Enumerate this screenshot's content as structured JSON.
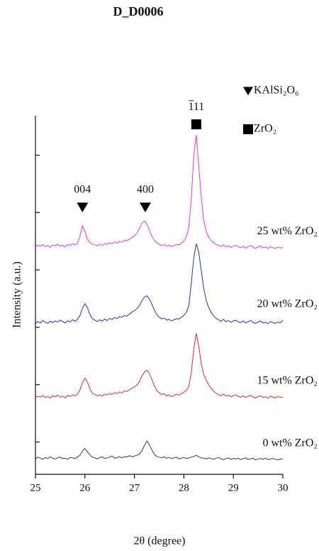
{
  "chart_data": {
    "type": "line",
    "title": "D_D0006",
    "xlabel": "2θ (degree)",
    "ylabel": "Intensity (a.u.)",
    "xlim": [
      25,
      30
    ],
    "xticks": [
      25,
      26,
      27,
      28,
      29,
      30
    ],
    "ylim": [
      0,
      100
    ],
    "yticks": [
      9,
      25,
      41,
      57,
      73,
      89
    ],
    "ytick_labels": false,
    "x": [
      25.0,
      25.05,
      25.1,
      25.15,
      25.2,
      25.25,
      25.3,
      25.35,
      25.4,
      25.45,
      25.5,
      25.55,
      25.6,
      25.65,
      25.7,
      25.75,
      25.8,
      25.85,
      25.9,
      25.95,
      26.0,
      26.05,
      26.1,
      26.15,
      26.2,
      26.25,
      26.3,
      26.35,
      26.4,
      26.45,
      26.5,
      26.55,
      26.6,
      26.65,
      26.7,
      26.75,
      26.8,
      26.85,
      26.9,
      26.95,
      27.0,
      27.05,
      27.1,
      27.15,
      27.2,
      27.25,
      27.3,
      27.35,
      27.4,
      27.45,
      27.5,
      27.55,
      27.6,
      27.65,
      27.7,
      27.75,
      27.8,
      27.85,
      27.9,
      27.95,
      28.0,
      28.05,
      28.1,
      28.15,
      28.2,
      28.25,
      28.3,
      28.35,
      28.4,
      28.45,
      28.5,
      28.55,
      28.6,
      28.65,
      28.7,
      28.75,
      28.8,
      28.85,
      28.9,
      28.95,
      29.0,
      29.05,
      29.1,
      29.15,
      29.2,
      29.25,
      29.3,
      29.35,
      29.4,
      29.45,
      29.5,
      29.55,
      29.6,
      29.65,
      29.7,
      29.75,
      29.8,
      29.85,
      29.9,
      29.95,
      30.0
    ],
    "series": [
      {
        "name": "0 wt% ZrO₂",
        "color": "#3a3a3a",
        "values": [
          4.3,
          4.8,
          4.5,
          4.2,
          4.7,
          4.4,
          4.9,
          4.5,
          4.3,
          4.6,
          4.8,
          4.4,
          4.5,
          4.2,
          4.7,
          4.6,
          4.4,
          4.9,
          5.3,
          6.5,
          7.2,
          6.3,
          5.4,
          4.8,
          4.6,
          4.3,
          4.7,
          4.9,
          4.4,
          4.6,
          4.8,
          5.1,
          4.5,
          4.7,
          4.9,
          4.6,
          5.0,
          4.8,
          5.2,
          4.9,
          5.1,
          5.3,
          5.6,
          6.6,
          8.0,
          9.3,
          8.3,
          6.9,
          5.6,
          5.0,
          4.8,
          4.6,
          4.9,
          4.5,
          4.7,
          4.4,
          4.6,
          4.8,
          4.3,
          4.5,
          4.7,
          4.4,
          4.6,
          4.8,
          5.0,
          5.3,
          4.9,
          4.6,
          4.5,
          4.3,
          4.6,
          4.4,
          4.2,
          4.5,
          4.7,
          4.3,
          4.1,
          4.4,
          4.6,
          4.2,
          4.4,
          4.3,
          4.5,
          4.1,
          4.4,
          4.6,
          4.2,
          4.3,
          4.5,
          4.0,
          4.3,
          4.4,
          4.2,
          4.5,
          4.1,
          4.3,
          4.4,
          4.2,
          4.0,
          4.3,
          4.2
        ]
      },
      {
        "name": "15 wt% ZrO₂",
        "color": "#e8262b",
        "values": [
          21.3,
          21.8,
          21.5,
          22.0,
          21.4,
          21.7,
          21.2,
          21.9,
          21.6,
          22.1,
          21.5,
          21.8,
          21.3,
          22.0,
          21.7,
          22.2,
          21.9,
          22.3,
          23.5,
          25.5,
          26.8,
          25.8,
          23.9,
          22.6,
          22.3,
          21.9,
          22.2,
          21.8,
          22.4,
          22.1,
          22.6,
          22.3,
          22.8,
          22.5,
          23.0,
          22.7,
          23.3,
          23.1,
          23.6,
          24.0,
          24.4,
          24.9,
          25.8,
          27.3,
          28.5,
          29.0,
          28.2,
          26.6,
          24.8,
          23.4,
          22.8,
          22.2,
          22.5,
          21.9,
          22.1,
          21.7,
          22.0,
          22.3,
          22.1,
          22.5,
          22.9,
          23.4,
          24.5,
          28.5,
          35.0,
          39.3,
          35.8,
          31.0,
          28.0,
          26.2,
          25.0,
          24.0,
          23.2,
          22.6,
          22.2,
          21.9,
          22.4,
          21.8,
          22.1,
          21.6,
          21.9,
          22.2,
          21.7,
          21.5,
          21.9,
          21.4,
          21.8,
          22.0,
          21.5,
          21.3,
          21.7,
          21.9,
          21.4,
          21.6,
          21.2,
          21.8,
          21.5,
          21.3,
          21.7,
          21.4,
          21.6
        ]
      },
      {
        "name": "20 wt% ZrO₂",
        "color": "#2a2ad8",
        "values": [
          42.0,
          42.6,
          42.2,
          42.9,
          42.4,
          42.1,
          42.7,
          42.3,
          42.8,
          42.5,
          43.0,
          42.6,
          42.2,
          42.8,
          42.5,
          43.1,
          42.7,
          43.2,
          44.3,
          46.3,
          47.6,
          46.5,
          44.6,
          43.4,
          43.0,
          42.6,
          43.1,
          42.7,
          43.3,
          42.9,
          43.5,
          43.2,
          43.7,
          43.4,
          44.0,
          43.8,
          44.3,
          44.1,
          44.7,
          45.2,
          45.6,
          46.2,
          47.0,
          48.4,
          49.4,
          49.8,
          49.0,
          47.6,
          45.9,
          44.6,
          43.9,
          43.3,
          43.6,
          43.0,
          43.2,
          42.8,
          43.1,
          43.4,
          43.3,
          43.8,
          44.3,
          45.2,
          47.0,
          53.5,
          60.5,
          64.3,
          62.0,
          57.0,
          52.0,
          48.6,
          46.6,
          45.2,
          44.2,
          43.5,
          43.1,
          42.7,
          43.2,
          42.6,
          42.9,
          42.4,
          42.8,
          43.0,
          42.5,
          42.3,
          42.8,
          42.2,
          42.6,
          42.9,
          42.3,
          42.1,
          42.5,
          42.8,
          42.2,
          42.4,
          42.0,
          42.6,
          42.3,
          42.1,
          42.5,
          42.2,
          43.0
        ]
      },
      {
        "name": "25 wt% ZrO₂",
        "color": "#ee2ee8",
        "values": [
          63.4,
          63.9,
          63.6,
          64.1,
          63.5,
          63.8,
          63.3,
          64.0,
          63.7,
          64.2,
          63.6,
          63.9,
          63.4,
          64.1,
          63.8,
          64.3,
          64.0,
          64.4,
          66.5,
          69.3,
          67.8,
          65.5,
          64.6,
          64.2,
          64.0,
          63.7,
          64.2,
          63.8,
          64.4,
          64.1,
          64.6,
          64.3,
          64.8,
          64.5,
          65.0,
          64.8,
          65.3,
          65.1,
          65.6,
          66.0,
          66.5,
          67.3,
          68.5,
          70.0,
          70.6,
          69.8,
          68.2,
          66.5,
          65.3,
          64.6,
          64.2,
          63.8,
          64.1,
          63.6,
          63.9,
          63.5,
          63.8,
          64.1,
          64.0,
          64.5,
          65.0,
          66.3,
          68.8,
          77.0,
          89.0,
          94.7,
          86.0,
          77.5,
          71.0,
          67.8,
          66.2,
          65.2,
          64.6,
          64.1,
          63.9,
          63.5,
          64.0,
          63.4,
          63.7,
          63.3,
          63.6,
          63.9,
          63.4,
          63.2,
          63.6,
          63.1,
          63.5,
          63.8,
          63.3,
          63.0,
          63.4,
          63.7,
          63.2,
          63.4,
          63.0,
          63.5,
          63.2,
          63.0,
          63.4,
          63.1,
          63.3
        ]
      }
    ],
    "annotations": [
      {
        "label": "004",
        "x": 25.95,
        "y": 74.5,
        "marker": "triangle"
      },
      {
        "label": "400",
        "x": 27.22,
        "y": 74.5,
        "marker": "triangle"
      },
      {
        "label": "111",
        "x": 28.25,
        "y": 97.6,
        "marker": "square"
      }
    ],
    "legend": [
      {
        "marker": "triangle",
        "label": "KAlSi₂O₆"
      },
      {
        "marker": "square",
        "label": "ZrO₂"
      }
    ]
  }
}
